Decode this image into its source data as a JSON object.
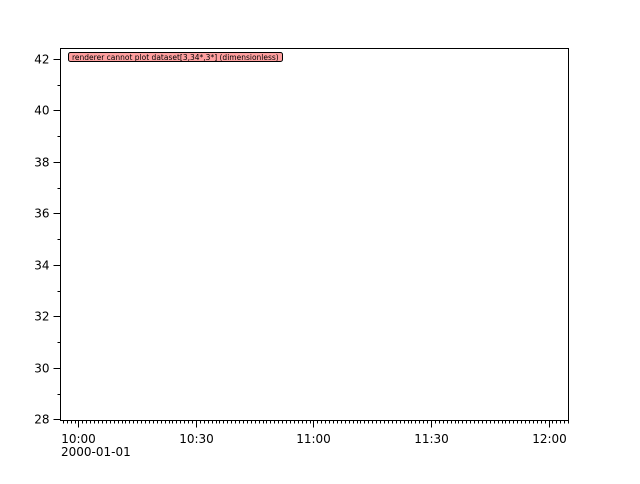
{
  "chart_data": {
    "type": "line",
    "title": "",
    "xlabel": "",
    "ylabel": "",
    "x_type": "time",
    "xlim": [
      "2000-01-01T09:55:25",
      "2000-01-01T12:05:06"
    ],
    "ylim": [
      27.96,
      42.4
    ],
    "x_ticks": [
      {
        "value": "2000-01-01T10:00",
        "label": "10:00"
      },
      {
        "value": "2000-01-01T10:30",
        "label": "10:30"
      },
      {
        "value": "2000-01-01T11:00",
        "label": "11:00"
      },
      {
        "value": "2000-01-01T11:30",
        "label": "11:30"
      },
      {
        "value": "2000-01-01T12:00",
        "label": "12:00"
      }
    ],
    "x_date_label": "2000-01-01",
    "y_ticks": [
      28,
      30,
      32,
      34,
      36,
      38,
      40,
      42
    ],
    "grid": false,
    "series": [],
    "message": "renderer cannot plot dataset[3,34*,3*] (dimensionless)",
    "colors": {
      "axis": "#000000",
      "message_bg": "#ffa0a0",
      "message_border": "#000000"
    }
  }
}
